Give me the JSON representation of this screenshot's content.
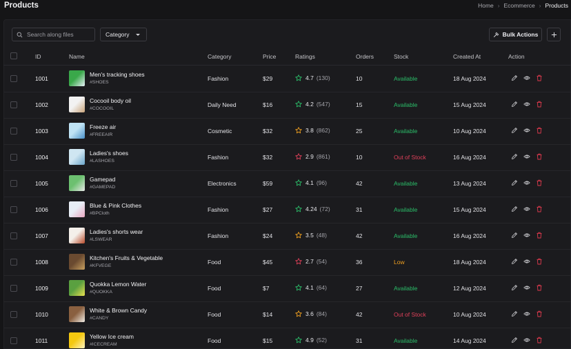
{
  "header": {
    "title": "Products",
    "breadcrumb": [
      "Home",
      "Ecommerce",
      "Products"
    ]
  },
  "toolbar": {
    "search_placeholder": "Search along files",
    "category_label": "Category",
    "bulk_actions_label": "Bulk Actions"
  },
  "colors": {
    "available": "#2bbf6a",
    "out_of_stock": "#e0405a",
    "low": "#f0a020",
    "star_green": "#2bbf6a",
    "star_orange": "#f0a020",
    "star_red": "#e0405a",
    "delete_icon": "#e03a4e"
  },
  "table": {
    "columns": [
      "ID",
      "Name",
      "Category",
      "Price",
      "Ratings",
      "Orders",
      "Stock",
      "Created At",
      "Action"
    ],
    "rows": [
      {
        "id": "1001",
        "name": "Men's tracking shoes",
        "sku": "#SHOES",
        "category": "Fashion",
        "price": "$29",
        "rating": "4.7",
        "reviews": "(130)",
        "star": "green",
        "orders": "10",
        "stock": "Available",
        "stock_color": "#2bbf6a",
        "created": "18 Aug 2024",
        "thumb": [
          "#3aa84a",
          "#e8f0f8"
        ]
      },
      {
        "id": "1002",
        "name": "Cocooil body oil",
        "sku": "#COCOOIL",
        "category": "Daily Need",
        "price": "$16",
        "rating": "4.2",
        "reviews": "(547)",
        "star": "green",
        "orders": "15",
        "stock": "Available",
        "stock_color": "#2bbf6a",
        "created": "15 Aug 2024",
        "thumb": [
          "#f2f2f2",
          "#c9a37a"
        ]
      },
      {
        "id": "1003",
        "name": "Freeze air",
        "sku": "#FREEAIR",
        "category": "Cosmetic",
        "price": "$32",
        "rating": "3.8",
        "reviews": "(862)",
        "star": "orange",
        "orders": "25",
        "stock": "Available",
        "stock_color": "#2bbf6a",
        "created": "10 Aug 2024",
        "thumb": [
          "#bfe3f5",
          "#4a90c8"
        ]
      },
      {
        "id": "1004",
        "name": "Ladies's shoes",
        "sku": "#LASHOES",
        "category": "Fashion",
        "price": "$32",
        "rating": "2.9",
        "reviews": "(861)",
        "star": "red",
        "orders": "10",
        "stock": "Out of Stock",
        "stock_color": "#e0405a",
        "created": "16 Aug 2024",
        "thumb": [
          "#cfe6f2",
          "#6aa4c8"
        ]
      },
      {
        "id": "1005",
        "name": "Gamepad",
        "sku": "#GAMEPAD",
        "category": "Electronics",
        "price": "$59",
        "rating": "4.1",
        "reviews": "(96)",
        "star": "green",
        "orders": "42",
        "stock": "Available",
        "stock_color": "#2bbf6a",
        "created": "13 Aug 2024",
        "thumb": [
          "#6cc070",
          "#e8e8e8"
        ]
      },
      {
        "id": "1006",
        "name": "Blue & Pink Clothes",
        "sku": "#BPCloth",
        "category": "Fashion",
        "price": "$27",
        "rating": "4.24",
        "reviews": "(72)",
        "star": "green",
        "orders": "31",
        "stock": "Available",
        "stock_color": "#2bbf6a",
        "created": "15 Aug 2024",
        "thumb": [
          "#e8eef6",
          "#e8a6c0"
        ]
      },
      {
        "id": "1007",
        "name": "Ladies's shorts wear",
        "sku": "#LSWEAR",
        "category": "Fashion",
        "price": "$24",
        "rating": "3.5",
        "reviews": "(48)",
        "star": "orange",
        "orders": "42",
        "stock": "Available",
        "stock_color": "#2bbf6a",
        "created": "16 Aug 2024",
        "thumb": [
          "#f4f0ea",
          "#b84a2a"
        ]
      },
      {
        "id": "1008",
        "name": "Kitchen's Fruits & Vegetable",
        "sku": "#KFVEGE",
        "category": "Food",
        "price": "$45",
        "rating": "2.7",
        "reviews": "(54)",
        "star": "red",
        "orders": "36",
        "stock": "Low",
        "stock_color": "#f0a020",
        "created": "18 Aug 2024",
        "thumb": [
          "#6a4a30",
          "#c8a060"
        ]
      },
      {
        "id": "1009",
        "name": "Quokka Lemon Water",
        "sku": "#QUOKKA",
        "category": "Food",
        "price": "$7",
        "rating": "4.1",
        "reviews": "(64)",
        "star": "green",
        "orders": "27",
        "stock": "Available",
        "stock_color": "#2bbf6a",
        "created": "12 Aug 2024",
        "thumb": [
          "#5aa040",
          "#e8e050"
        ]
      },
      {
        "id": "1010",
        "name": "White & Brown Candy",
        "sku": "#CANDY",
        "category": "Food",
        "price": "$14",
        "rating": "3.6",
        "reviews": "(84)",
        "star": "orange",
        "orders": "42",
        "stock": "Out of Stock",
        "stock_color": "#e0405a",
        "created": "10 Aug 2024",
        "thumb": [
          "#8a6040",
          "#f0ece4"
        ]
      },
      {
        "id": "1011",
        "name": "Yellow Ice cream",
        "sku": "#ICECREAM",
        "category": "Food",
        "price": "$15",
        "rating": "4.9",
        "reviews": "(52)",
        "star": "green",
        "orders": "31",
        "stock": "Available",
        "stock_color": "#2bbf6a",
        "created": "14 Aug 2024",
        "thumb": [
          "#f4c810",
          "#fff4c0"
        ]
      }
    ]
  }
}
